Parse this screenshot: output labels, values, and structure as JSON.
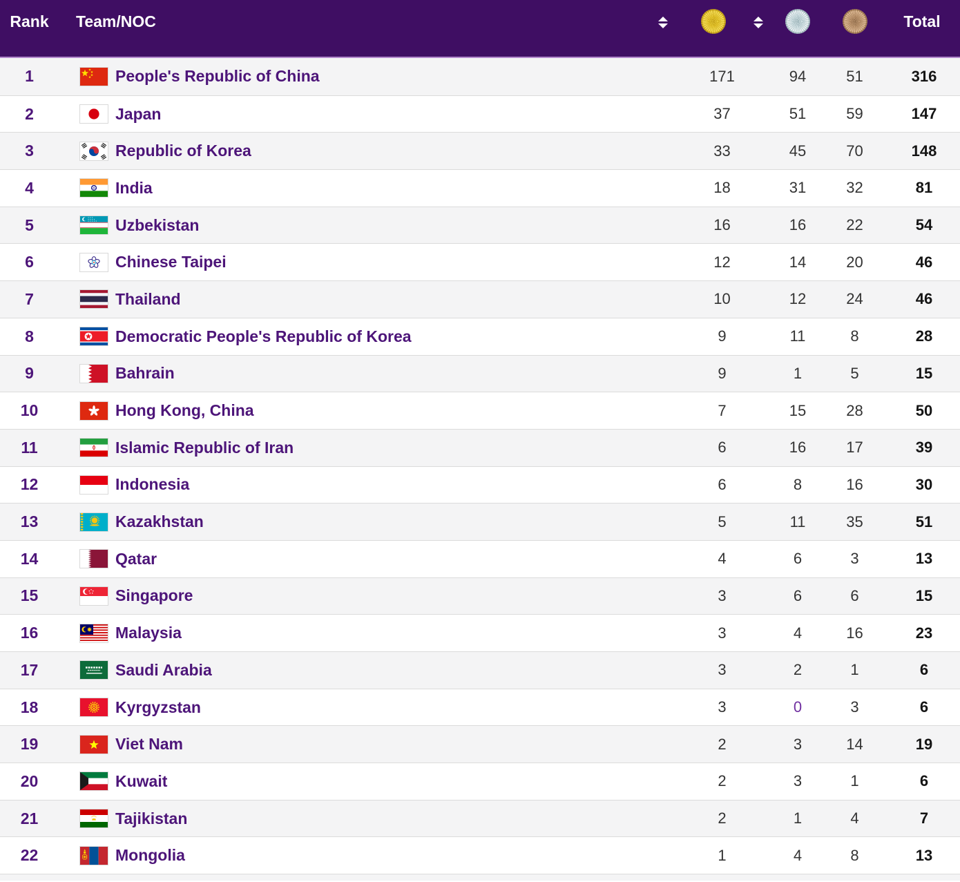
{
  "header": {
    "rank_label": "Rank",
    "team_label": "Team/NOC",
    "total_label": "Total",
    "sort_icon": "sort-updown-icon",
    "gold_icon": "gold-medal-icon",
    "silver_icon": "silver-medal-icon",
    "bronze_icon": "bronze-medal-icon"
  },
  "colors": {
    "header_bg": "#3F0E63",
    "header_text": "#FFFFFF",
    "header_border": "#B287CC",
    "row_alt_bg": "#F4F4F5",
    "row_bg": "#FFFFFF",
    "divider": "#DBDBDB",
    "rank_text": "#4D1579",
    "team_text": "#4D1579",
    "medal_text": "#333333",
    "total_text": "#141414",
    "highlight": "#7030A0",
    "gold": "#E3BF14",
    "silver": "#C0D6DA",
    "bronze": "#B58C66"
  },
  "rows": [
    {
      "rank": "1",
      "team": "People's Republic of China",
      "flag": "flag-china",
      "gold": "171",
      "silver": "94",
      "bronze": "51",
      "total": "316"
    },
    {
      "rank": "2",
      "team": "Japan",
      "flag": "flag-japan",
      "gold": "37",
      "silver": "51",
      "bronze": "59",
      "total": "147"
    },
    {
      "rank": "3",
      "team": "Republic of Korea",
      "flag": "flag-korea",
      "gold": "33",
      "silver": "45",
      "bronze": "70",
      "total": "148"
    },
    {
      "rank": "4",
      "team": "India",
      "flag": "flag-india",
      "gold": "18",
      "silver": "31",
      "bronze": "32",
      "total": "81"
    },
    {
      "rank": "5",
      "team": "Uzbekistan",
      "flag": "flag-uzbekistan",
      "gold": "16",
      "silver": "16",
      "bronze": "22",
      "total": "54"
    },
    {
      "rank": "6",
      "team": "Chinese Taipei",
      "flag": "flag-taipei",
      "gold": "12",
      "silver": "14",
      "bronze": "20",
      "total": "46"
    },
    {
      "rank": "7",
      "team": "Thailand",
      "flag": "flag-thailand",
      "gold": "10",
      "silver": "12",
      "bronze": "24",
      "total": "46"
    },
    {
      "rank": "8",
      "team": "Democratic People's Republic of Korea",
      "flag": "flag-dprk",
      "gold": "9",
      "silver": "11",
      "bronze": "8",
      "total": "28"
    },
    {
      "rank": "9",
      "team": "Bahrain",
      "flag": "flag-bahrain",
      "gold": "9",
      "silver": "1",
      "bronze": "5",
      "total": "15"
    },
    {
      "rank": "10",
      "team": "Hong Kong, China",
      "flag": "flag-hongkong",
      "gold": "7",
      "silver": "15",
      "bronze": "28",
      "total": "50"
    },
    {
      "rank": "11",
      "team": "Islamic Republic of Iran",
      "flag": "flag-iran",
      "gold": "6",
      "silver": "16",
      "bronze": "17",
      "total": "39"
    },
    {
      "rank": "12",
      "team": "Indonesia",
      "flag": "flag-indonesia",
      "gold": "6",
      "silver": "8",
      "bronze": "16",
      "total": "30"
    },
    {
      "rank": "13",
      "team": "Kazakhstan",
      "flag": "flag-kazakhstan",
      "gold": "5",
      "silver": "11",
      "bronze": "35",
      "total": "51"
    },
    {
      "rank": "14",
      "team": "Qatar",
      "flag": "flag-qatar",
      "gold": "4",
      "silver": "6",
      "bronze": "3",
      "total": "13"
    },
    {
      "rank": "15",
      "team": "Singapore",
      "flag": "flag-singapore",
      "gold": "3",
      "silver": "6",
      "bronze": "6",
      "total": "15"
    },
    {
      "rank": "16",
      "team": "Malaysia",
      "flag": "flag-malaysia",
      "gold": "3",
      "silver": "4",
      "bronze": "16",
      "total": "23"
    },
    {
      "rank": "17",
      "team": "Saudi Arabia",
      "flag": "flag-saudi",
      "gold": "3",
      "silver": "2",
      "bronze": "1",
      "total": "6"
    },
    {
      "rank": "18",
      "team": "Kyrgyzstan",
      "flag": "flag-kyrgyzstan",
      "gold": "3",
      "silver": "0",
      "bronze": "3",
      "total": "6",
      "silver_highlighted": true
    },
    {
      "rank": "19",
      "team": "Viet Nam",
      "flag": "flag-vietnam",
      "gold": "2",
      "silver": "3",
      "bronze": "14",
      "total": "19"
    },
    {
      "rank": "20",
      "team": "Kuwait",
      "flag": "flag-kuwait",
      "gold": "2",
      "silver": "3",
      "bronze": "1",
      "total": "6"
    },
    {
      "rank": "21",
      "team": "Tajikistan",
      "flag": "flag-tajikistan",
      "gold": "2",
      "silver": "1",
      "bronze": "4",
      "total": "7"
    },
    {
      "rank": "22",
      "team": "Mongolia",
      "flag": "flag-mongolia",
      "gold": "1",
      "silver": "4",
      "bronze": "8",
      "total": "13"
    }
  ]
}
